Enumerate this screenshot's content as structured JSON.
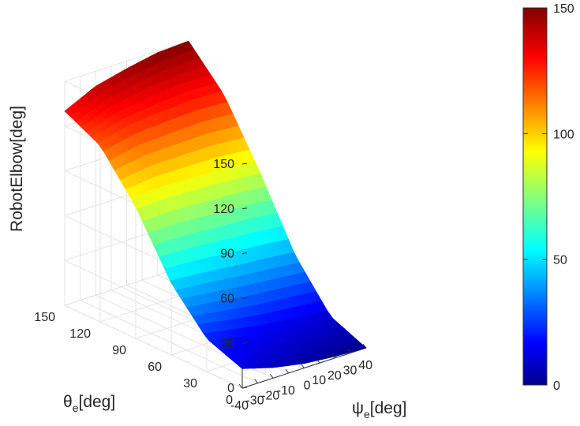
{
  "chart_data": {
    "type": "surface",
    "title": "",
    "xlabel": {
      "main": "ψ",
      "sub": "e",
      "unit": "[deg]"
    },
    "ylabel": {
      "main": "θ",
      "sub": "e",
      "unit": "[deg]"
    },
    "zlabel": "RobotElbow[deg]",
    "x_ticks": [
      "-40",
      "-30",
      "-20",
      "-10",
      "0",
      "10",
      "20",
      "30",
      "40"
    ],
    "y_ticks": [
      "0",
      "30",
      "60",
      "90",
      "120",
      "150"
    ],
    "z_ticks": [
      "0",
      "30",
      "60",
      "90",
      "120",
      "150"
    ],
    "xlim": [
      -40,
      40
    ],
    "ylim": [
      0,
      150
    ],
    "zlim": [
      0,
      150
    ],
    "grid": true,
    "colormap": "jet",
    "colorbar": {
      "ticks": [
        "0",
        "50",
        "100",
        "150"
      ],
      "range": [
        0,
        150
      ],
      "placement": "right"
    },
    "corners": [
      {
        "x": -40,
        "y": 0,
        "z": 13
      },
      {
        "x": 40,
        "y": 0,
        "z": 0
      },
      {
        "x": -40,
        "y": 150,
        "z": 130
      },
      {
        "x": 40,
        "y": 150,
        "z": 150
      }
    ],
    "x_edge_y0": {
      "x": [
        -40,
        -20,
        0,
        20,
        40
      ],
      "z": [
        13,
        7,
        3,
        1,
        0
      ]
    },
    "x_edge_y150": {
      "x": [
        -40,
        -20,
        0,
        20,
        40
      ],
      "z": [
        130,
        140,
        145,
        149,
        150
      ]
    },
    "y_edge_x40": {
      "y": [
        0,
        30,
        60,
        90,
        120,
        150
      ],
      "z": [
        0,
        10,
        40,
        85,
        125,
        150
      ]
    },
    "y_edge_xm40": {
      "y": [
        0,
        30,
        60,
        90,
        120,
        150
      ],
      "z": [
        13,
        22,
        48,
        88,
        118,
        130
      ]
    }
  }
}
